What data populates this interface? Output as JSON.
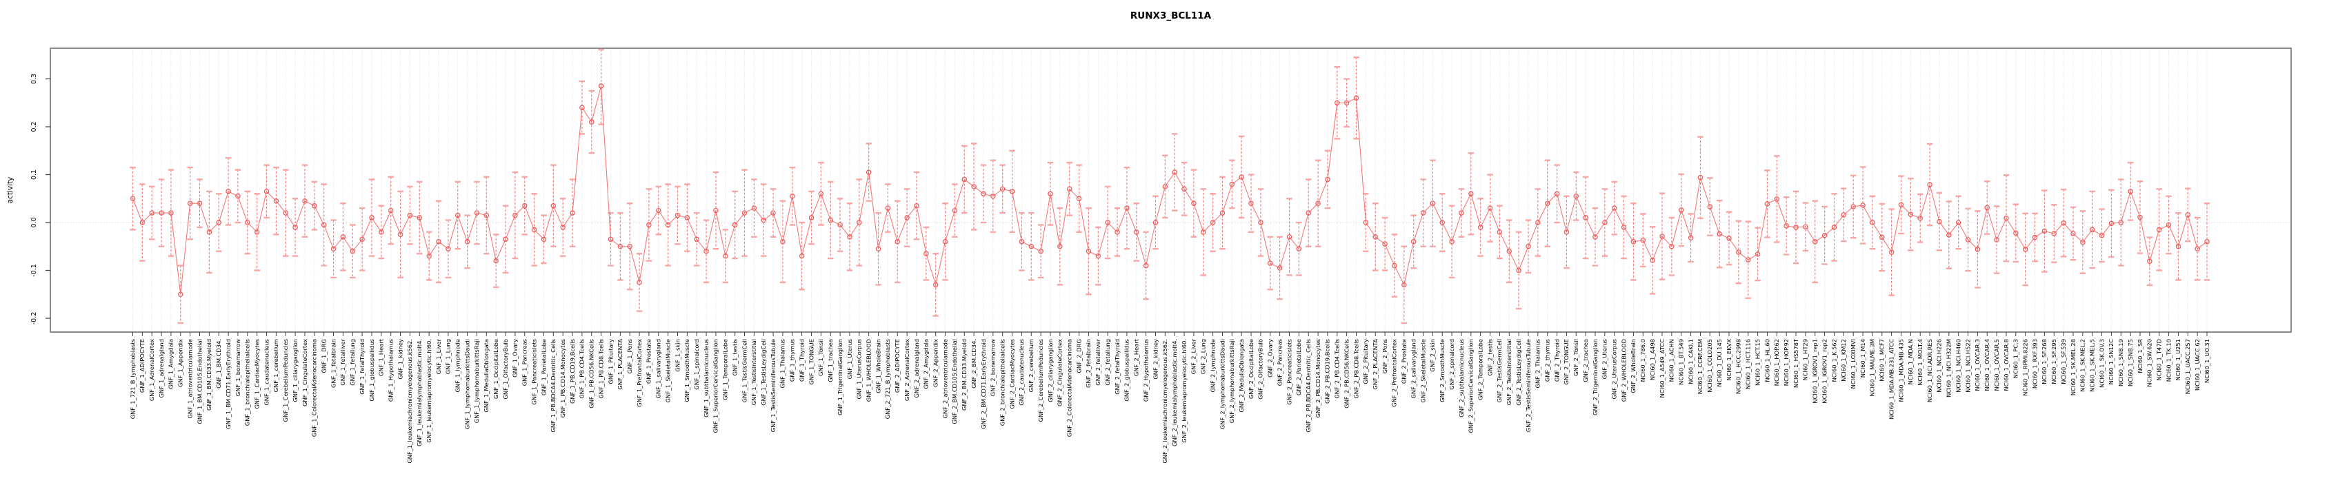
{
  "title": "RUNX3_BCL11A",
  "chart_data": {
    "type": "line",
    "subtype": "points-with-error-bars",
    "title": "RUNX3_BCL11A",
    "xlabel": "",
    "ylabel": "activity",
    "ylim": [
      -0.24,
      0.35
    ],
    "yticks": [
      -0.2,
      -0.1,
      0.0,
      0.1,
      0.2,
      0.3
    ],
    "grid": "vertical dotted line per category, dotted horizontal line at y=0",
    "legend": "none",
    "marker": "open-circle",
    "colors": {
      "series": "#f26a6a",
      "marker": "#ee5b5b",
      "error_stem": "#f26a6a",
      "error_caps": "#f7a6a6",
      "grid": "#dcdcdc",
      "zero_line": "#d4d4d4",
      "axis_box": "#8c8c8c",
      "tick": "#444444",
      "text": "#000000"
    },
    "blocks": [
      {
        "prefix": "GNF_1_",
        "set": "gnf"
      },
      {
        "prefix": "GNF_2_",
        "set": "gnf"
      },
      {
        "prefix": "NCI60_1_",
        "set": "nci60"
      }
    ],
    "tissue_sets": {
      "gnf": [
        "721_B_lymphoblasts",
        "ADIPOCYTE",
        "AdrenalCortex",
        "adrenalgland",
        "Amygdala",
        "Appendix",
        "atrioventricularnode",
        "BM.CD105.Endothelial",
        "BM.CD33.Myeloid",
        "BM.CD34.",
        "BM.CD71.EarlyErythroid",
        "bonemarrow",
        "bronchialepithelialcells",
        "CardiacMyocytes",
        "caudatenucleus",
        "cerebellum",
        "CerebellumPeduncles",
        "ciliaryganglion",
        "CingulateCortex",
        "ColorectalAdenocarcinoma",
        "DRG",
        "fetalbrain",
        "fetalliver",
        "fetallung",
        "fetalThyroid",
        "globuspallidus",
        "Heart",
        "Hypothalamus",
        "kidney",
        "leukemiachronicmyelogenous.k562.",
        "leukemialymphoblastic.molt4.",
        "leukemiapromyelocytic.hl60.",
        "Liver",
        "Lung",
        "lymphnode",
        "lymphomaburkittsDaudi",
        "lymphomaburkittsRaji",
        "MedullaOblongata",
        "OccipitalLobe",
        "OlfactoryBulb",
        "Ovary",
        "Pancreas",
        "Pancreaticislets",
        "ParietalLobe",
        "PB.BDCA4.Dentritic_Cells",
        "PB.CD14.Monocytes",
        "PB.CD19.Bcells",
        "PB.CD4.Tcells",
        "PB.CD56.NKCells",
        "PB.CD8.Tcells",
        "Pituitary",
        "PLACENTA",
        "Pons",
        "PrefrontalCortex",
        "Prostate",
        "salivarygland",
        "SkeletalMuscle",
        "skin",
        "SmoothMuscle",
        "spinalcord",
        "subthalamicnucleus",
        "SuperiorCervicalGanglion",
        "TemporalLobe",
        "testis",
        "TestisGermCell",
        "TestisInterstitial",
        "TestisLeydigCell",
        "TestisSeminiferousTubule",
        "Thalamus",
        "thymus",
        "Thyroid",
        "TONGUE",
        "Tonsil",
        "trachea",
        "TrigeminalGanglion",
        "Uterus",
        "UterusCorpus",
        "WHOLEBLOOD",
        "WholeBrain"
      ],
      "nci60": [
        "786.0",
        "A498",
        "A549_ATCC",
        "ACHN",
        "BT.549",
        "CAKI.1",
        "CCRF.CEM",
        "COLO205",
        "DU.145",
        "EKVX",
        "HCC.2998",
        "HCT.116",
        "HCT.15",
        "HL.60",
        "HOP.62",
        "HOP.92",
        "HS578T",
        "HT29",
        "IGROV1_rep1",
        "IGROV1_rep2",
        "K.562",
        "KM12",
        "LOXIMVI",
        "M14",
        "MALME.3M",
        "MCF7",
        "MDA.MB.231_ATCC",
        "MDA.MB.435",
        "MDA.N",
        "MOLT.4",
        "NCI.ADR.RES",
        "NCI.H226",
        "NCI.H322M",
        "NCI.H460",
        "NCI.H522",
        "OVCAR.3",
        "OVCAR.4",
        "OVCAR.5",
        "OVCAR.8",
        "PC.3",
        "RPMI.8226",
        "RXF.393",
        "SF.268",
        "SF.295",
        "SF.539",
        "SK.MEL.28",
        "SK.MEL.2",
        "SK.MEL.5",
        "SK.OV.3",
        "SN12C",
        "SNB.19",
        "SNB.75",
        "SR",
        "SW.620",
        "T47D",
        "TK.10",
        "U251",
        "UACC.257",
        "UACC.62",
        "UO.31"
      ]
    },
    "values": [
      0.05,
      0,
      0.02,
      0.02,
      0.02,
      -0.15,
      0.04,
      0.04,
      -0.02,
      0,
      0.065,
      0.055,
      0,
      -0.02,
      0.065,
      0.045,
      0.02,
      -0.01,
      0.045,
      0.035,
      -0.005,
      -0.055,
      -0.03,
      -0.06,
      -0.035,
      0.01,
      -0.02,
      0.025,
      -0.025,
      0.015,
      0.01,
      -0.07,
      -0.04,
      -0.055,
      0.015,
      -0.04,
      0.02,
      0.015,
      -0.08,
      -0.035,
      0.015,
      0.035,
      -0.015,
      -0.035,
      0.035,
      -0.01,
      0.02,
      0.24,
      0.21,
      0.285,
      -0.035,
      -0.05,
      -0.05,
      -0.125,
      -0.005,
      0.025,
      -0.005,
      0.015,
      0.01,
      -0.035,
      -0.06,
      0.025,
      -0.07,
      -0.005,
      0.02,
      0.03,
      0.005,
      0.02,
      -0.04,
      0.055,
      -0.07,
      0.01,
      0.06,
      0.005,
      -0.005,
      -0.03,
      0,
      0.105,
      -0.055,
      0.03,
      -0.04,
      0.01,
      0.035,
      -0.065,
      -0.13,
      -0.04,
      0.025,
      0.09,
      0.075,
      0.06,
      0.055,
      0.07,
      0.065,
      -0.04,
      -0.05,
      -0.06,
      0.06,
      -0.05,
      0.07,
      0.05,
      -0.06,
      -0.07,
      0,
      -0.02,
      0.03,
      -0.02,
      -0.09,
      0,
      0.075,
      0.105,
      0.07,
      0.04,
      -0.02,
      0,
      0.02,
      0.08,
      0.095,
      0.04,
      0,
      -0.085,
      -0.095,
      -0.03,
      -0.055,
      0.02,
      0.04,
      0.09,
      0.25,
      0.25,
      0.26,
      0,
      -0.03,
      -0.045,
      -0.09,
      -0.13,
      -0.04,
      0.02,
      0.04,
      0,
      -0.04,
      0.02,
      0.06,
      -0.01,
      0.03,
      -0.02,
      -0.06,
      -0.1,
      -0.05,
      0,
      0.04,
      0.06,
      -0.02,
      0.055,
      0.01,
      -0.03,
      0,
      0.03,
      -0.01,
      -0.04,
      -0.037,
      -0.079,
      -0.029,
      -0.05,
      0.026,
      -0.032,
      0.094,
      0.033,
      -0.024,
      -0.033,
      -0.062,
      -0.078,
      -0.066,
      0.039,
      0.049,
      -0.007,
      -0.01,
      -0.009,
      -0.04,
      -0.027,
      -0.01,
      0.016,
      0.033,
      0.036,
      0,
      -0.031,
      -0.062,
      0.037,
      0.017,
      0.009,
      0.079,
      0.002,
      -0.026,
      0,
      -0.036,
      -0.056,
      0.031,
      -0.036,
      0.009,
      -0.022,
      -0.056,
      -0.031,
      -0.018,
      -0.023,
      -0.001,
      -0.023,
      -0.041,
      -0.015,
      -0.027,
      -0.002,
      0,
      0.065,
      0.011,
      -0.081,
      -0.015,
      -0.005,
      -0.05,
      0.016,
      -0.055,
      -0.04
    ],
    "errors": [
      0.065,
      0.08,
      0.055,
      0.07,
      0.09,
      0.06,
      0.075,
      0.05,
      0.085,
      0.06,
      0.07,
      0.055,
      0.065,
      0.08,
      0.055,
      0.07,
      0.09,
      0.06,
      0.075,
      0.05,
      0.085,
      0.06,
      0.07,
      0.055,
      0.065,
      0.08,
      0.055,
      0.07,
      0.09,
      0.06,
      0.075,
      0.05,
      0.085,
      0.06,
      0.07,
      0.055,
      0.065,
      0.08,
      0.055,
      0.07,
      0.09,
      0.06,
      0.075,
      0.05,
      0.085,
      0.06,
      0.07,
      0.055,
      0.065,
      0.08,
      0.055,
      0.07,
      0.09,
      0.06,
      0.075,
      0.05,
      0.085,
      0.06,
      0.07,
      0.055,
      0.065,
      0.08,
      0.055,
      0.07,
      0.09,
      0.06,
      0.075,
      0.05,
      0.085,
      0.06,
      0.07,
      0.055,
      0.065,
      0.08,
      0.055,
      0.07,
      0.09,
      0.06,
      0.075,
      0.05,
      0.085,
      0.06,
      0.07,
      0.055,
      0.065,
      0.08,
      0.055,
      0.07,
      0.09,
      0.06,
      0.075,
      0.05,
      0.085,
      0.06,
      0.07,
      0.055,
      0.065,
      0.08,
      0.055,
      0.07,
      0.09,
      0.06,
      0.075,
      0.05,
      0.085,
      0.06,
      0.07,
      0.055,
      0.065,
      0.08,
      0.055,
      0.07,
      0.09,
      0.06,
      0.075,
      0.05,
      0.085,
      0.06,
      0.07,
      0.055,
      0.065,
      0.08,
      0.055,
      0.07,
      0.09,
      0.06,
      0.075,
      0.05,
      0.085,
      0.06,
      0.07,
      0.055,
      0.065,
      0.08,
      0.055,
      0.07,
      0.09,
      0.06,
      0.075,
      0.05,
      0.085,
      0.06,
      0.07,
      0.055,
      0.065,
      0.08,
      0.055,
      0.07,
      0.09,
      0.06,
      0.075,
      0.05,
      0.085,
      0.06,
      0.07,
      0.055,
      0.065,
      0.08,
      0.055,
      0.07,
      0.09,
      0.06,
      0.075,
      0.05,
      0.085,
      0.06,
      0.07,
      0.055,
      0.065,
      0.08,
      0.055,
      0.07,
      0.09,
      0.06,
      0.075,
      0.05,
      0.085,
      0.06,
      0.07,
      0.055,
      0.065,
      0.08,
      0.055,
      0.07,
      0.09,
      0.06,
      0.075,
      0.05,
      0.085,
      0.06,
      0.07,
      0.055,
      0.065,
      0.08,
      0.055,
      0.07,
      0.09,
      0.06,
      0.075,
      0.05,
      0.085,
      0.06,
      0.07,
      0.055,
      0.065,
      0.08,
      0.055,
      0.07,
      0.09,
      0.06,
      0.075,
      0.05,
      0.085,
      0.06,
      0.07,
      0.055,
      0.065,
      0.08
    ]
  }
}
